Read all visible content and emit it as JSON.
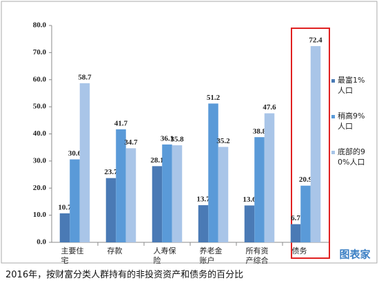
{
  "chart_data": {
    "type": "bar",
    "caption": "2016年，按财富分类人群持有的非投资资产和债务的百分比",
    "watermark": "图表家",
    "categories": [
      "主要住宅",
      "存款",
      "人寿保险",
      "养老金账户",
      "所有资产综合",
      "债务"
    ],
    "series": [
      {
        "name": "最富1%人口",
        "color": "#4a7ab5",
        "values": [
          10.7,
          23.7,
          28.1,
          13.7,
          13.6,
          6.7
        ]
      },
      {
        "name": "稍高9%人口",
        "color": "#5a9ad8",
        "values": [
          30.6,
          41.7,
          36.1,
          51.2,
          38.8,
          20.9
        ]
      },
      {
        "name": "底部的90%人口",
        "color": "#a9c5e8",
        "values": [
          58.7,
          34.7,
          35.8,
          35.2,
          47.6,
          72.4
        ]
      }
    ],
    "ylim": [
      0,
      80
    ],
    "yticks": [
      {
        "value": 0,
        "label": "0.0"
      },
      {
        "value": 10,
        "label": "10.0"
      },
      {
        "value": 20,
        "label": "20.0"
      },
      {
        "value": 30,
        "label": "30.0"
      },
      {
        "value": 40,
        "label": "40.0"
      },
      {
        "value": 50,
        "label": "50.0"
      },
      {
        "value": 60,
        "label": "60.0"
      },
      {
        "value": 70,
        "label": "70.0"
      },
      {
        "value": 80,
        "label": "80.0"
      }
    ],
    "grid": false
  }
}
